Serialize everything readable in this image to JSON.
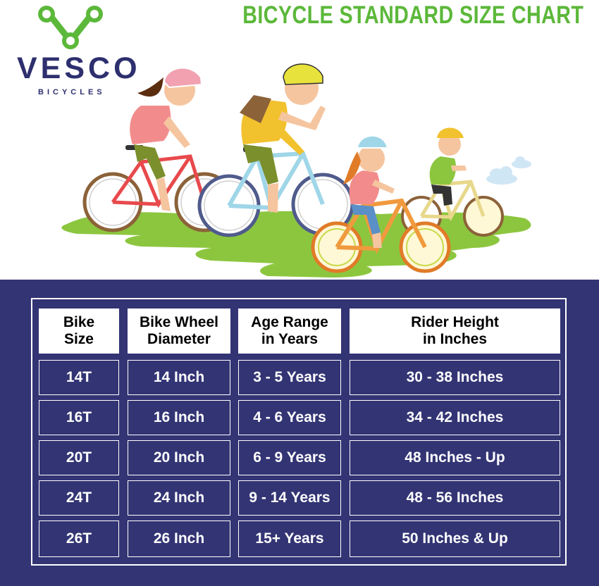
{
  "brand": {
    "name": "VESCO",
    "tagline": "BICYCLES",
    "logo_color": "#2e2f6e",
    "chain_color": "#5cb83a"
  },
  "title": "BICYCLE STANDARD SIZE CHART",
  "colors": {
    "title_green": "#5cb83a",
    "panel_navy": "#333474",
    "grass_green": "#8cc63f",
    "header_bg": "#ffffff"
  },
  "illustration": {
    "description_icons": [
      "mother-cyclist-icon",
      "father-cyclist-icon",
      "girl-cyclist-icon",
      "boy-cyclist-icon",
      "cloud-icon",
      "grass-icon"
    ]
  },
  "table": {
    "headers": [
      {
        "line1": "Bike",
        "line2": "Size"
      },
      {
        "line1": "Bike Wheel",
        "line2": "Diameter"
      },
      {
        "line1": "Age Range",
        "line2": "in Years"
      },
      {
        "line1": "Rider Height",
        "line2": "in Inches"
      }
    ],
    "rows": [
      [
        "14T",
        "14 Inch",
        "3 - 5 Years",
        "30 - 38 Inches"
      ],
      [
        "16T",
        "16 Inch",
        "4 - 6 Years",
        "34 - 42 Inches"
      ],
      [
        "20T",
        "20 Inch",
        "6 - 9 Years",
        "48 Inches - Up"
      ],
      [
        "24T",
        "24 Inch",
        "9 - 14 Years",
        "48 - 56 Inches"
      ],
      [
        "26T",
        "26 Inch",
        "15+ Years",
        "50 Inches & Up"
      ]
    ]
  }
}
